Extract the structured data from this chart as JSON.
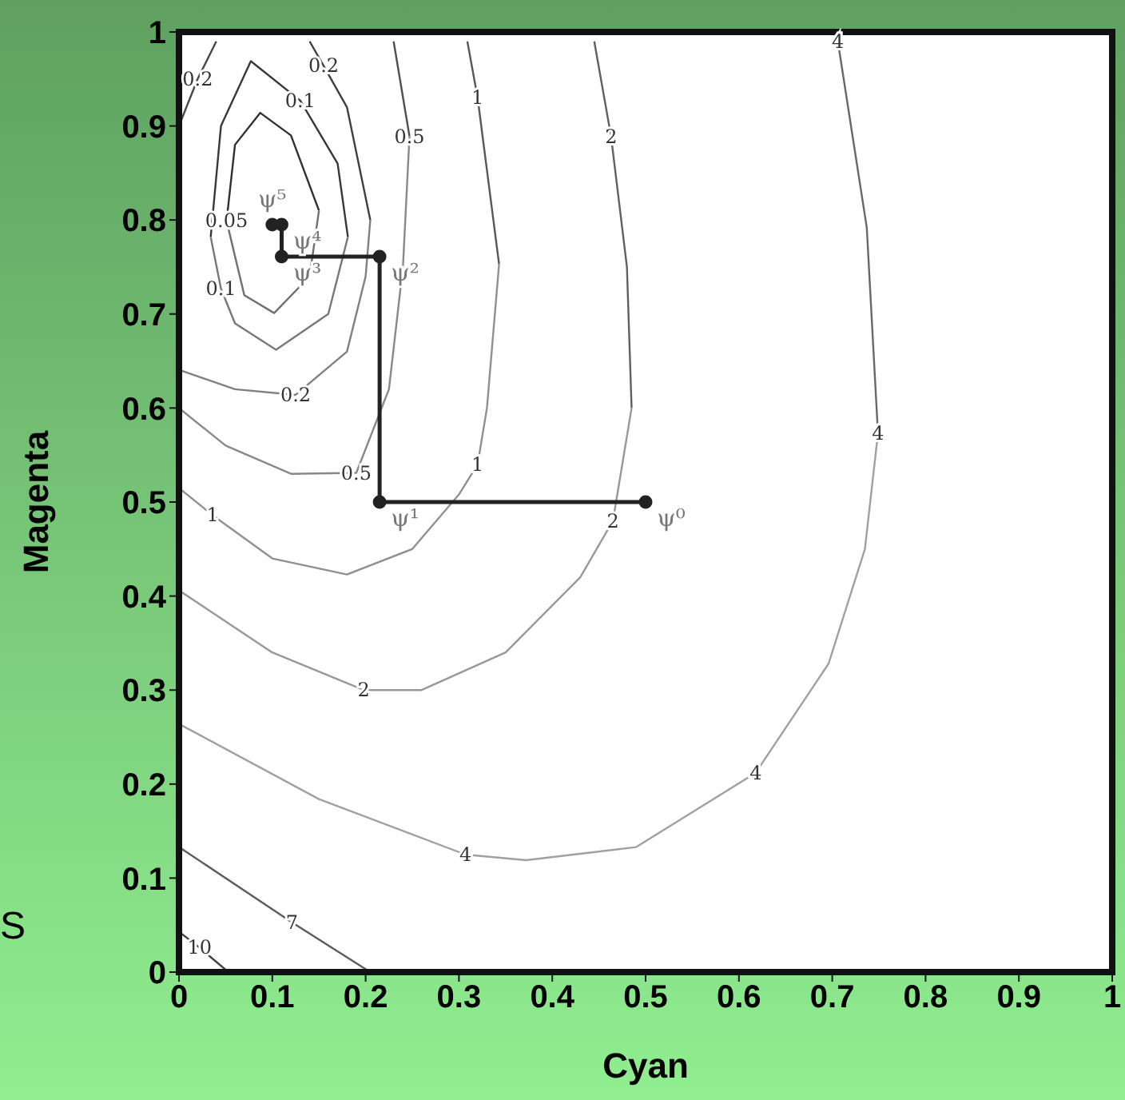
{
  "chart_data": {
    "type": "line",
    "xlabel": "Cyan",
    "ylabel": "Magenta",
    "xlim": [
      0,
      1
    ],
    "ylim": [
      0,
      1
    ],
    "xticks": [
      0,
      0.1,
      0.2,
      0.3,
      0.4,
      0.5,
      0.6,
      0.7,
      0.8,
      0.9,
      1
    ],
    "yticks": [
      0,
      0.1,
      0.2,
      0.3,
      0.4,
      0.5,
      0.6,
      0.7,
      0.8,
      0.9,
      1
    ],
    "marker": "none",
    "line_style": "solid",
    "series": [
      {
        "color": "#303030",
        "x": [
          0.051,
          0.06,
          0.087,
          0.12,
          0.15
        ],
        "values": [
          0.799,
          0.88,
          0.914,
          0.89,
          0.81
        ]
      },
      {
        "color": "#707070",
        "x": [
          0.051,
          0.07,
          0.102,
          0.14,
          0.15
        ],
        "values": [
          0.799,
          0.72,
          0.701,
          0.74,
          0.81
        ]
      },
      {
        "color": "#383838",
        "x": [
          0.034,
          0.045,
          0.077,
          0.13,
          0.17,
          0.181
        ],
        "values": [
          0.782,
          0.9,
          0.969,
          0.927,
          0.86,
          0.782
        ]
      },
      {
        "color": "#787878",
        "x": [
          0.034,
          0.045,
          0.06,
          0.104,
          0.16,
          0.181
        ],
        "values": [
          0.782,
          0.727,
          0.69,
          0.662,
          0.7,
          0.782
        ]
      },
      {
        "color": "#404040",
        "x": [
          0.14,
          0.155,
          0.18,
          0.205
        ],
        "values": [
          0.99,
          0.964,
          0.92,
          0.8
        ]
      },
      {
        "color": "#808080",
        "x": [
          0.002,
          0.06,
          0.125,
          0.18,
          0.2,
          0.205
        ],
        "values": [
          0.64,
          0.62,
          0.614,
          0.66,
          0.74,
          0.8
        ]
      },
      {
        "color": "#484848",
        "x": [
          0,
          0.02,
          0.04
        ],
        "values": [
          0.9,
          0.95,
          0.99
        ]
      },
      {
        "color": "#505050",
        "x": [
          0.23,
          0.247
        ],
        "values": [
          0.99,
          0.889
        ]
      },
      {
        "color": "#888888",
        "x": [
          0,
          0.05,
          0.12,
          0.19,
          0.225,
          0.24,
          0.247
        ],
        "values": [
          0.6,
          0.56,
          0.53,
          0.531,
          0.62,
          0.75,
          0.889
        ]
      },
      {
        "color": "#585858",
        "x": [
          0.309,
          0.32,
          0.343
        ],
        "values": [
          0.99,
          0.93,
          0.753
        ]
      },
      {
        "color": "#909090",
        "x": [
          0,
          0.036,
          0.1,
          0.18,
          0.25,
          0.3,
          0.32,
          0.33,
          0.343
        ],
        "values": [
          0.515,
          0.486,
          0.44,
          0.423,
          0.45,
          0.508,
          0.54,
          0.6,
          0.753
        ]
      },
      {
        "color": "#606060",
        "x": [
          0.445,
          0.463,
          0.48,
          0.485
        ],
        "values": [
          0.99,
          0.889,
          0.75,
          0.6
        ]
      },
      {
        "color": "#989898",
        "x": [
          0,
          0.1,
          0.198,
          0.26,
          0.35,
          0.43,
          0.465,
          0.485
        ],
        "values": [
          0.406,
          0.34,
          0.3,
          0.3,
          0.34,
          0.42,
          0.48,
          0.6
        ]
      },
      {
        "color": "#686868",
        "x": [
          0.706,
          0.737,
          0.749
        ],
        "values": [
          0.99,
          0.792,
          0.573
        ]
      },
      {
        "color": "#a0a0a0",
        "x": [
          0,
          0.15,
          0.307,
          0.372,
          0.49,
          0.618,
          0.696,
          0.735,
          0.749
        ],
        "values": [
          0.264,
          0.184,
          0.125,
          0.119,
          0.133,
          0.212,
          0.328,
          0.45,
          0.573
        ]
      },
      {
        "color": "#5c5c5c",
        "x": [
          0,
          0.121,
          0.205
        ],
        "values": [
          0.133,
          0.053,
          0
        ]
      },
      {
        "color": "#444444",
        "x": [
          0,
          0.022,
          0.053
        ],
        "values": [
          0.043,
          0.026,
          0
        ]
      },
      {
        "color": "#222222",
        "marker": "circle",
        "x": [
          0.5,
          0.215,
          0.215,
          0.11,
          0.11,
          0.1
        ],
        "values": [
          0.5,
          0.5,
          0.761,
          0.761,
          0.795,
          0.795
        ]
      }
    ],
    "annotations": [
      {
        "text": "0.05",
        "x": 0.051,
        "y": 0.799
      },
      {
        "text": "0.1",
        "x": 0.045,
        "y": 0.727
      },
      {
        "text": "0.1",
        "x": 0.13,
        "y": 0.927
      },
      {
        "text": "0.2",
        "x": 0.02,
        "y": 0.95
      },
      {
        "text": "0.2",
        "x": 0.155,
        "y": 0.964
      },
      {
        "text": "0.2",
        "x": 0.125,
        "y": 0.614
      },
      {
        "text": "0.5",
        "x": 0.247,
        "y": 0.889
      },
      {
        "text": "0.5",
        "x": 0.19,
        "y": 0.531
      },
      {
        "text": "1",
        "x": 0.32,
        "y": 0.93
      },
      {
        "text": "1",
        "x": 0.32,
        "y": 0.54
      },
      {
        "text": "1",
        "x": 0.036,
        "y": 0.486
      },
      {
        "text": "2",
        "x": 0.463,
        "y": 0.889
      },
      {
        "text": "2",
        "x": 0.465,
        "y": 0.48
      },
      {
        "text": "2",
        "x": 0.198,
        "y": 0.3
      },
      {
        "text": "4",
        "x": 0.706,
        "y": 0.99
      },
      {
        "text": "4",
        "x": 0.749,
        "y": 0.573
      },
      {
        "text": "4",
        "x": 0.618,
        "y": 0.212
      },
      {
        "text": "4",
        "x": 0.307,
        "y": 0.125
      },
      {
        "text": "7",
        "x": 0.121,
        "y": 0.053
      },
      {
        "text": "10",
        "x": 0.022,
        "y": 0.026
      },
      {
        "text": "ψ⁰",
        "x": 0.5,
        "y": 0.5
      },
      {
        "text": "ψ¹",
        "x": 0.215,
        "y": 0.5
      },
      {
        "text": "ψ²",
        "x": 0.215,
        "y": 0.761
      },
      {
        "text": "ψ³",
        "x": 0.11,
        "y": 0.761
      },
      {
        "text": "ψ⁴",
        "x": 0.11,
        "y": 0.795
      },
      {
        "text": "ψ⁵",
        "x": 0.1,
        "y": 0.795
      },
      "S"
    ]
  }
}
